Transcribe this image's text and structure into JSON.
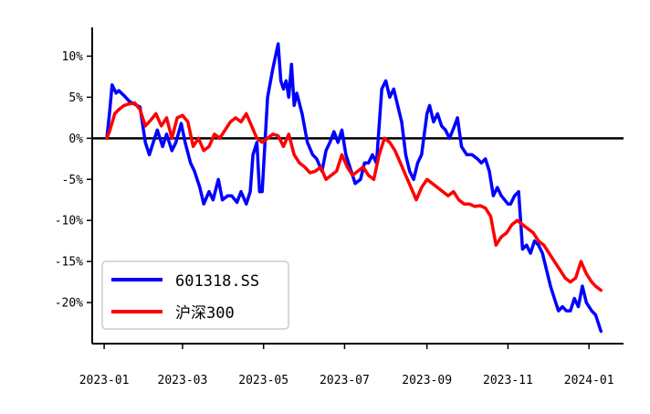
{
  "chart_data": {
    "type": "line",
    "title": "",
    "xlabel": "",
    "ylabel": "",
    "ylim": [
      -25,
      13.5
    ],
    "xlim": [
      "2022-12-23",
      "2024-01-27"
    ],
    "x_ticks": [
      "2023-01",
      "2023-03",
      "2023-05",
      "2023-07",
      "2023-09",
      "2023-11",
      "2024-01"
    ],
    "y_ticks": [
      {
        "value": 10,
        "label": "10%"
      },
      {
        "value": 5,
        "label": "5%"
      },
      {
        "value": 0,
        "label": "0%"
      },
      {
        "value": -5,
        "label": "-5%"
      },
      {
        "value": -10,
        "label": "-10%"
      },
      {
        "value": -15,
        "label": "-15%"
      },
      {
        "value": -20,
        "label": "-20%"
      }
    ],
    "zero_line": 0,
    "legend": {
      "position": "bottom-left"
    },
    "series": [
      {
        "name": "601318.SS",
        "color": "#0000ff",
        "points": [
          [
            "2023-01-03",
            0
          ],
          [
            "2023-01-05",
            3
          ],
          [
            "2023-01-07",
            6.5
          ],
          [
            "2023-01-10",
            5.5
          ],
          [
            "2023-01-12",
            5.8
          ],
          [
            "2023-01-16",
            5.2
          ],
          [
            "2023-01-20",
            4.5
          ],
          [
            "2023-01-28",
            3.8
          ],
          [
            "2023-02-01",
            -0.5
          ],
          [
            "2023-02-04",
            -2
          ],
          [
            "2023-02-07",
            -0.5
          ],
          [
            "2023-02-10",
            1
          ],
          [
            "2023-02-14",
            -1
          ],
          [
            "2023-02-17",
            0.5
          ],
          [
            "2023-02-21",
            -1.5
          ],
          [
            "2023-02-24",
            -0.5
          ],
          [
            "2023-02-28",
            1.8
          ],
          [
            "2023-03-03",
            -0.5
          ],
          [
            "2023-03-07",
            -3
          ],
          [
            "2023-03-10",
            -4
          ],
          [
            "2023-03-14",
            -6
          ],
          [
            "2023-03-17",
            -8
          ],
          [
            "2023-03-21",
            -6.5
          ],
          [
            "2023-03-24",
            -7.5
          ],
          [
            "2023-03-28",
            -5
          ],
          [
            "2023-03-31",
            -7.5
          ],
          [
            "2023-04-04",
            -7
          ],
          [
            "2023-04-07",
            -7
          ],
          [
            "2023-04-11",
            -7.8
          ],
          [
            "2023-04-14",
            -6.5
          ],
          [
            "2023-04-18",
            -8
          ],
          [
            "2023-04-21",
            -6.5
          ],
          [
            "2023-04-23",
            -2
          ],
          [
            "2023-04-26",
            -0.5
          ],
          [
            "2023-04-28",
            -6.5
          ],
          [
            "2023-04-30",
            -6.5
          ],
          [
            "2023-05-04",
            5
          ],
          [
            "2023-05-08",
            8.5
          ],
          [
            "2023-05-10",
            10
          ],
          [
            "2023-05-12",
            11.5
          ],
          [
            "2023-05-14",
            7
          ],
          [
            "2023-05-16",
            6
          ],
          [
            "2023-05-18",
            7
          ],
          [
            "2023-05-20",
            5
          ],
          [
            "2023-05-22",
            9
          ],
          [
            "2023-05-24",
            4
          ],
          [
            "2023-05-26",
            5.5
          ],
          [
            "2023-05-30",
            3
          ],
          [
            "2023-06-03",
            -0.5
          ],
          [
            "2023-06-07",
            -2
          ],
          [
            "2023-06-10",
            -2.5
          ],
          [
            "2023-06-14",
            -4
          ],
          [
            "2023-06-17",
            -1.5
          ],
          [
            "2023-06-20",
            -0.5
          ],
          [
            "2023-06-23",
            0.8
          ],
          [
            "2023-06-26",
            -0.5
          ],
          [
            "2023-06-29",
            1
          ],
          [
            "2023-07-02",
            -2
          ],
          [
            "2023-07-06",
            -4
          ],
          [
            "2023-07-09",
            -5.5
          ],
          [
            "2023-07-13",
            -5
          ],
          [
            "2023-07-16",
            -3
          ],
          [
            "2023-07-19",
            -3
          ],
          [
            "2023-07-22",
            -2
          ],
          [
            "2023-07-25",
            -3
          ],
          [
            "2023-07-29",
            6
          ],
          [
            "2023-08-01",
            7
          ],
          [
            "2023-08-04",
            5
          ],
          [
            "2023-08-07",
            6
          ],
          [
            "2023-08-10",
            4
          ],
          [
            "2023-08-13",
            2
          ],
          [
            "2023-08-16",
            -2
          ],
          [
            "2023-08-19",
            -4
          ],
          [
            "2023-08-22",
            -5
          ],
          [
            "2023-08-25",
            -3
          ],
          [
            "2023-08-28",
            -2
          ],
          [
            "2023-09-01",
            3
          ],
          [
            "2023-09-03",
            4
          ],
          [
            "2023-09-06",
            2
          ],
          [
            "2023-09-09",
            3
          ],
          [
            "2023-09-12",
            1.5
          ],
          [
            "2023-09-15",
            1
          ],
          [
            "2023-09-18",
            0
          ],
          [
            "2023-09-21",
            1.2
          ],
          [
            "2023-09-24",
            2.5
          ],
          [
            "2023-09-27",
            -1
          ],
          [
            "2023-10-01",
            -2
          ],
          [
            "2023-10-05",
            -2
          ],
          [
            "2023-10-09",
            -2.5
          ],
          [
            "2023-10-12",
            -3
          ],
          [
            "2023-10-15",
            -2.5
          ],
          [
            "2023-10-18",
            -4
          ],
          [
            "2023-10-21",
            -7
          ],
          [
            "2023-10-24",
            -6
          ],
          [
            "2023-10-27",
            -7
          ],
          [
            "2023-11-01",
            -8
          ],
          [
            "2023-11-03",
            -8
          ],
          [
            "2023-11-06",
            -7
          ],
          [
            "2023-11-09",
            -6.5
          ],
          [
            "2023-11-12",
            -13.5
          ],
          [
            "2023-11-15",
            -13
          ],
          [
            "2023-11-18",
            -14
          ],
          [
            "2023-11-21",
            -12.5
          ],
          [
            "2023-11-24",
            -13
          ],
          [
            "2023-11-27",
            -14
          ],
          [
            "2023-11-30",
            -16
          ],
          [
            "2023-12-03",
            -18
          ],
          [
            "2023-12-06",
            -19.5
          ],
          [
            "2023-12-09",
            -21
          ],
          [
            "2023-12-12",
            -20.5
          ],
          [
            "2023-12-15",
            -21
          ],
          [
            "2023-12-18",
            -21
          ],
          [
            "2023-12-21",
            -19.5
          ],
          [
            "2023-12-24",
            -20.5
          ],
          [
            "2023-12-27",
            -18
          ],
          [
            "2023-12-30",
            -20
          ],
          [
            "2024-01-03",
            -21
          ],
          [
            "2024-01-06",
            -21.5
          ],
          [
            "2024-01-10",
            -23.5
          ]
        ]
      },
      {
        "name": "沪深300",
        "color": "#ff0000",
        "points": [
          [
            "2023-01-03",
            0
          ],
          [
            "2023-01-05",
            0.8
          ],
          [
            "2023-01-09",
            3
          ],
          [
            "2023-01-12",
            3.5
          ],
          [
            "2023-01-16",
            4
          ],
          [
            "2023-01-20",
            4.2
          ],
          [
            "2023-01-24",
            4.3
          ],
          [
            "2023-01-28",
            3.5
          ],
          [
            "2023-02-01",
            1.5
          ],
          [
            "2023-02-05",
            2.2
          ],
          [
            "2023-02-09",
            3
          ],
          [
            "2023-02-13",
            1.5
          ],
          [
            "2023-02-17",
            2.5
          ],
          [
            "2023-02-21",
            0
          ],
          [
            "2023-02-25",
            2.5
          ],
          [
            "2023-03-01",
            2.8
          ],
          [
            "2023-03-05",
            2
          ],
          [
            "2023-03-09",
            -1
          ],
          [
            "2023-03-13",
            0
          ],
          [
            "2023-03-17",
            -1.5
          ],
          [
            "2023-03-21",
            -1
          ],
          [
            "2023-03-25",
            0.5
          ],
          [
            "2023-03-29",
            0
          ],
          [
            "2023-04-02",
            1
          ],
          [
            "2023-04-06",
            2
          ],
          [
            "2023-04-10",
            2.5
          ],
          [
            "2023-04-14",
            2
          ],
          [
            "2023-04-18",
            3
          ],
          [
            "2023-04-22",
            1.5
          ],
          [
            "2023-04-26",
            0
          ],
          [
            "2023-04-30",
            -0.5
          ],
          [
            "2023-05-04",
            0
          ],
          [
            "2023-05-08",
            0.5
          ],
          [
            "2023-05-12",
            0.3
          ],
          [
            "2023-05-16",
            -1
          ],
          [
            "2023-05-20",
            0.5
          ],
          [
            "2023-05-24",
            -2
          ],
          [
            "2023-05-28",
            -3
          ],
          [
            "2023-06-01",
            -3.5
          ],
          [
            "2023-06-05",
            -4.2
          ],
          [
            "2023-06-09",
            -4
          ],
          [
            "2023-06-13",
            -3.5
          ],
          [
            "2023-06-17",
            -5
          ],
          [
            "2023-06-21",
            -4.5
          ],
          [
            "2023-06-25",
            -4
          ],
          [
            "2023-06-29",
            -2
          ],
          [
            "2023-07-03",
            -3.5
          ],
          [
            "2023-07-07",
            -4.5
          ],
          [
            "2023-07-11",
            -4
          ],
          [
            "2023-07-15",
            -3.5
          ],
          [
            "2023-07-19",
            -4.5
          ],
          [
            "2023-07-23",
            -5
          ],
          [
            "2023-07-27",
            -2
          ],
          [
            "2023-07-31",
            0
          ],
          [
            "2023-08-04",
            -0.5
          ],
          [
            "2023-08-08",
            -1.5
          ],
          [
            "2023-08-12",
            -3
          ],
          [
            "2023-08-16",
            -4.5
          ],
          [
            "2023-08-20",
            -6
          ],
          [
            "2023-08-24",
            -7.5
          ],
          [
            "2023-08-28",
            -6
          ],
          [
            "2023-09-01",
            -5
          ],
          [
            "2023-09-05",
            -5.5
          ],
          [
            "2023-09-09",
            -6
          ],
          [
            "2023-09-13",
            -6.5
          ],
          [
            "2023-09-17",
            -7
          ],
          [
            "2023-09-21",
            -6.5
          ],
          [
            "2023-09-25",
            -7.5
          ],
          [
            "2023-09-29",
            -8
          ],
          [
            "2023-10-03",
            -8
          ],
          [
            "2023-10-07",
            -8.3
          ],
          [
            "2023-10-11",
            -8.2
          ],
          [
            "2023-10-15",
            -8.5
          ],
          [
            "2023-10-19",
            -9.5
          ],
          [
            "2023-10-23",
            -13
          ],
          [
            "2023-10-27",
            -12
          ],
          [
            "2023-10-31",
            -11.5
          ],
          [
            "2023-11-04",
            -10.5
          ],
          [
            "2023-11-08",
            -10
          ],
          [
            "2023-11-12",
            -10.5
          ],
          [
            "2023-11-16",
            -11
          ],
          [
            "2023-11-20",
            -11.5
          ],
          [
            "2023-11-24",
            -12.5
          ],
          [
            "2023-11-28",
            -13
          ],
          [
            "2023-12-02",
            -14
          ],
          [
            "2023-12-06",
            -15
          ],
          [
            "2023-12-10",
            -16
          ],
          [
            "2023-12-14",
            -17
          ],
          [
            "2023-12-18",
            -17.5
          ],
          [
            "2023-12-22",
            -17
          ],
          [
            "2023-12-26",
            -15
          ],
          [
            "2023-12-30",
            -16.5
          ],
          [
            "2024-01-03",
            -17.5
          ],
          [
            "2024-01-06",
            -18
          ],
          [
            "2024-01-10",
            -18.5
          ]
        ]
      }
    ]
  }
}
